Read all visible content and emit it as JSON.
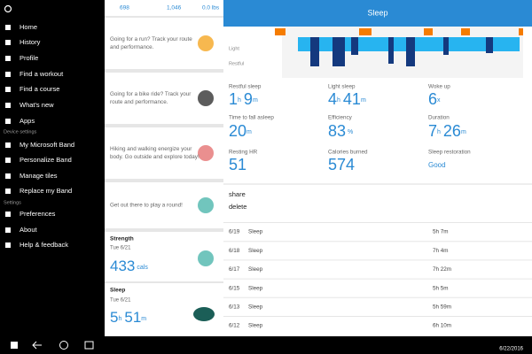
{
  "top_stats": [
    "698",
    "1,046",
    "0.0 lbs"
  ],
  "nav": {
    "items": [
      "Home",
      "History",
      "Profile",
      "Find a workout",
      "Find a course",
      "What's new",
      "Apps"
    ],
    "device_section": "Device settings",
    "device_items": [
      "My Microsoft Band",
      "Personalize Band",
      "Manage tiles",
      "Replace my Band"
    ],
    "settings_section": "Settings",
    "settings_items": [
      "Preferences",
      "About",
      "Help & feedback"
    ]
  },
  "cards": [
    {
      "lines": [
        "Going for a run? Track your route",
        "and performance."
      ]
    },
    {
      "lines": [
        "Going for a bike ride? Track your",
        "route and performance."
      ]
    },
    {
      "lines": [
        "Hiking and walking energize your",
        "body. Go outside and explore today!"
      ]
    },
    {
      "lines": [
        "Get out there to play a round!"
      ]
    }
  ],
  "strength": {
    "title": "Strength",
    "date": "Tue 6/21",
    "value": "433",
    "unit": "cals"
  },
  "sleep_card": {
    "title": "Sleep",
    "date": "Tue 6/21",
    "parts": [
      [
        "5",
        "h"
      ],
      [
        "51",
        "m"
      ]
    ]
  },
  "detail": {
    "title": "Sleep",
    "chart_labels": [
      "Light",
      "Restful"
    ],
    "stats": [
      {
        "label": "Restful sleep",
        "parts": [
          [
            "1",
            "h"
          ],
          [
            "9",
            "m"
          ]
        ]
      },
      {
        "label": "Light sleep",
        "parts": [
          [
            "4",
            "h"
          ],
          [
            "41",
            "m"
          ]
        ]
      },
      {
        "label": "Woke up",
        "parts": [
          [
            "6",
            "x"
          ]
        ]
      },
      {
        "label": "Time to fall asleep",
        "parts": [
          [
            "20",
            "m"
          ]
        ]
      },
      {
        "label": "Efficiency",
        "parts": [
          [
            "83",
            " %"
          ]
        ]
      },
      {
        "label": "Duration",
        "parts": [
          [
            "7",
            "h"
          ],
          [
            "26",
            "m"
          ]
        ]
      },
      {
        "label": "Resting HR",
        "parts": [
          [
            "51"
          ]
        ]
      },
      {
        "label": "Calories burned",
        "parts": [
          [
            "574"
          ]
        ]
      },
      {
        "label": "Sleep restoration",
        "parts": [
          [
            "Good"
          ]
        ]
      }
    ],
    "actions": [
      "share",
      "delete"
    ],
    "rows": [
      [
        "6/19",
        "Sleep",
        "5h 7m"
      ],
      [
        "6/18",
        "Sleep",
        "7h 4m"
      ],
      [
        "6/17",
        "Sleep",
        "7h 22m"
      ],
      [
        "6/15",
        "Sleep",
        "5h 5m"
      ],
      [
        "6/13",
        "Sleep",
        "5h 59m"
      ],
      [
        "6/12",
        "Sleep",
        "6h 10m"
      ]
    ]
  },
  "taskbar": {
    "date": "6/22/2016"
  }
}
